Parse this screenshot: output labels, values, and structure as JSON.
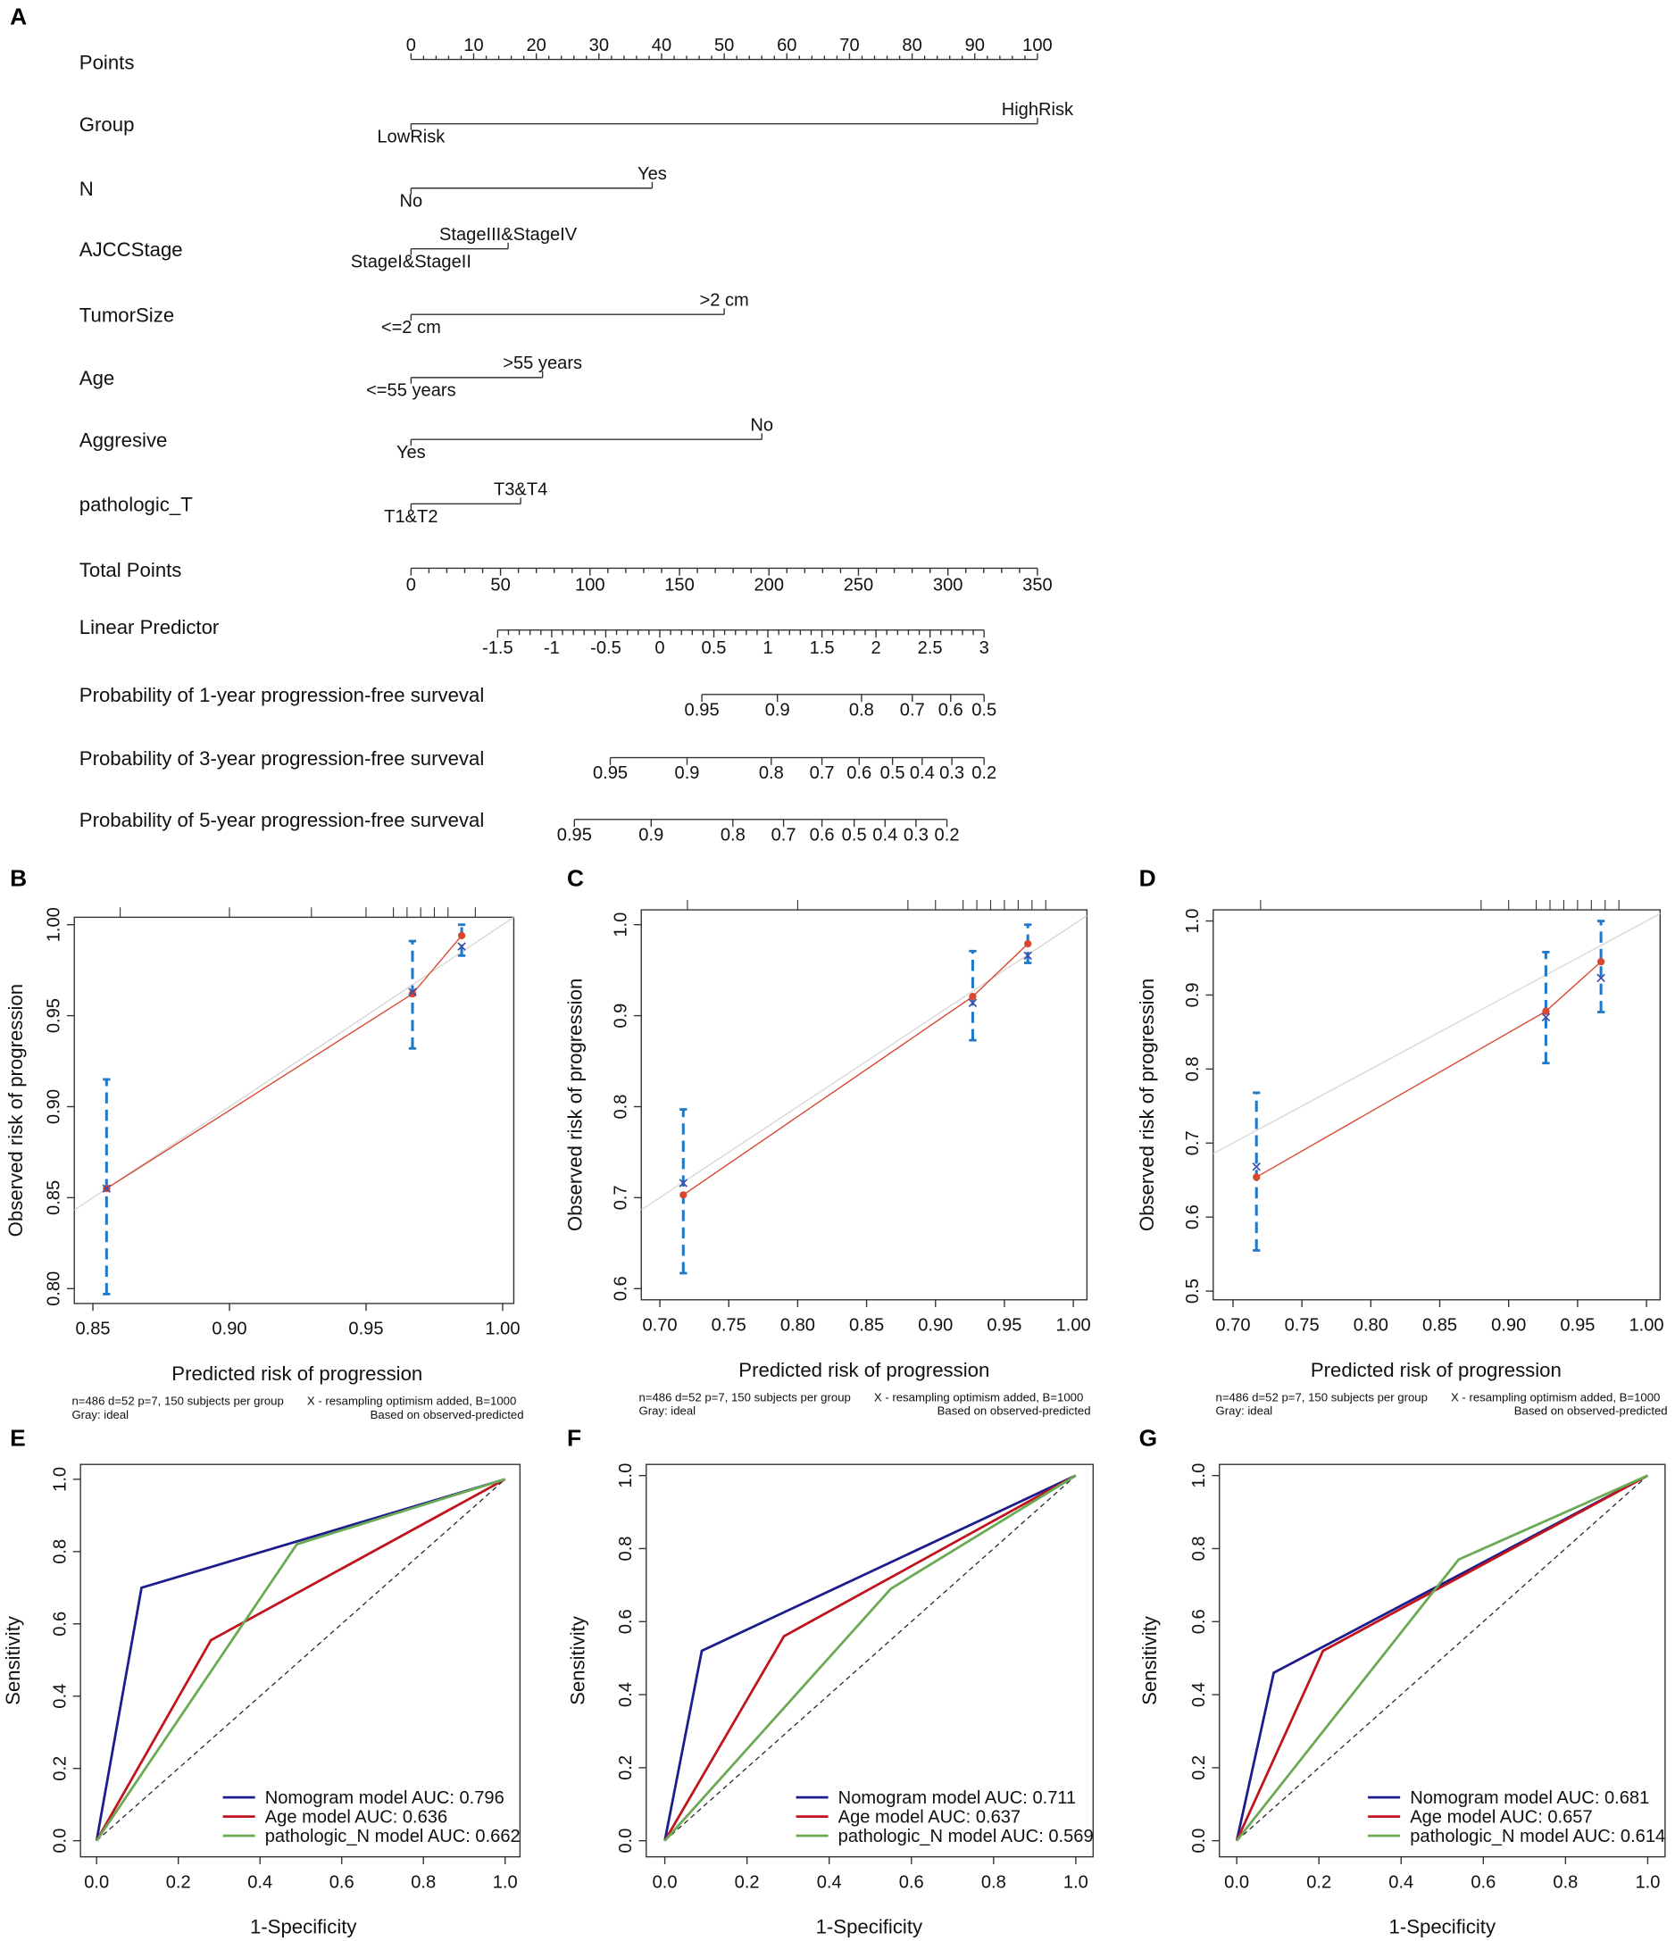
{
  "panel_labels": [
    "A",
    "B",
    "C",
    "D",
    "E",
    "F",
    "G"
  ],
  "chart_data": [
    {
      "type": "nomogram",
      "panel": "A",
      "points_axis": {
        "label": "Points",
        "min": 0,
        "max": 100,
        "ticks": [
          0,
          10,
          20,
          30,
          40,
          50,
          60,
          70,
          80,
          90,
          100
        ]
      },
      "variables": [
        {
          "label": "Group",
          "levels": [
            {
              "name": "LowRisk",
              "points": 0
            },
            {
              "name": "HighRisk",
              "points": 100
            }
          ]
        },
        {
          "label": "N",
          "levels": [
            {
              "name": "No",
              "points": 0
            },
            {
              "name": "Yes",
              "points": 38.5
            }
          ]
        },
        {
          "label": "AJCCStage",
          "levels": [
            {
              "name": "StageI&StageII",
              "points": 0
            },
            {
              "name": "StageIII&StageIV",
              "points": 15.5
            }
          ]
        },
        {
          "label": "TumorSize",
          "levels": [
            {
              "name": "<=2 cm",
              "points": 0
            },
            {
              "name": ">2 cm",
              "points": 50
            }
          ]
        },
        {
          "label": "Age",
          "levels": [
            {
              "name": "<=55 years",
              "points": 0
            },
            {
              "name": ">55 years",
              "points": 21
            }
          ]
        },
        {
          "label": "Aggresive",
          "levels": [
            {
              "name": "Yes",
              "points": 0
            },
            {
              "name": "No",
              "points": 56
            }
          ]
        },
        {
          "label": "pathologic_T",
          "levels": [
            {
              "name": "T1&T2",
              "points": 0
            },
            {
              "name": "T3&T4",
              "points": 17.5
            }
          ]
        }
      ],
      "total_points": {
        "label": "Total Points",
        "min": 0,
        "max": 350,
        "ticks": [
          "0",
          "50",
          "100",
          "150",
          "200",
          "250",
          "300",
          "350"
        ]
      },
      "linear_predictor": {
        "label": "Linear Predictor",
        "ticks": [
          "-1.5",
          "-1",
          "-0.5",
          "0",
          "0.5",
          "1",
          "1.5",
          "2",
          "2.5",
          "3"
        ],
        "lp_min": -1.5,
        "lp_max": 3,
        "tp_at_min": 48.4,
        "tp_per_unit": 60.4
      },
      "probability_scales": [
        {
          "label": "Probability of 1-year progression-free surveval",
          "ticks": [
            "0.95",
            "0.9",
            "0.8",
            "0.7",
            "0.6",
            "0.5"
          ],
          "lp": [
            0.389,
            1.088,
            1.866,
            2.336,
            2.691,
            3.0
          ]
        },
        {
          "label": "Probability of 3-year progression-free surveval",
          "ticks": [
            "0.95",
            "0.9",
            "0.8",
            "0.7",
            "0.6",
            "0.5",
            "0.4",
            "0.3",
            "0.2"
          ],
          "lp": [
            -0.458,
            0.252,
            1.031,
            1.5,
            1.844,
            2.153,
            2.427,
            2.702,
            3.0
          ]
        },
        {
          "label": "Probability of 5-year progression-free surveval",
          "ticks": [
            "0.95",
            "0.9",
            "0.8",
            "0.7",
            "0.6",
            "0.5",
            "0.4",
            "0.3",
            "0.2"
          ],
          "lp": [
            -0.79,
            -0.08,
            0.676,
            1.145,
            1.5,
            1.798,
            2.084,
            2.37,
            2.656
          ]
        }
      ]
    },
    {
      "type": "calibration",
      "panel": "B",
      "xlabel": "Predicted risk of progression",
      "ylabel": "Observed risk of progression",
      "xlim": [
        0.85,
        1.0
      ],
      "ylim": [
        0.8,
        1.0
      ],
      "xticks": [
        "0.85",
        "0.90",
        "0.95",
        "1.00"
      ],
      "yticks": [
        "0.80",
        "0.85",
        "0.90",
        "0.95",
        "1.00"
      ],
      "points": [
        {
          "x": 0.855,
          "y": 0.855,
          "lo": 0.797,
          "hi": 0.915,
          "corrected": 0.855
        },
        {
          "x": 0.967,
          "y": 0.962,
          "lo": 0.932,
          "hi": 0.991,
          "corrected": 0.963
        },
        {
          "x": 0.985,
          "y": 0.994,
          "lo": 0.983,
          "hi": 1.0,
          "corrected": 0.988
        }
      ],
      "rug": [
        0.86,
        0.9,
        0.93,
        0.95,
        0.96,
        0.965,
        0.97,
        0.975,
        0.98,
        0.99
      ],
      "footnote": [
        "n=486 d=52 p=7, 150 subjects per group",
        "X - resampling optimism added, B=1000",
        "Gray: ideal",
        "Based on observed-predicted"
      ]
    },
    {
      "type": "calibration",
      "panel": "C",
      "xlabel": "Predicted risk of progression",
      "ylabel": "Observed risk of progression",
      "xlim": [
        0.7,
        1.0
      ],
      "ylim": [
        0.6,
        1.0
      ],
      "xticks": [
        "0.70",
        "0.75",
        "0.80",
        "0.85",
        "0.90",
        "0.95",
        "1.00"
      ],
      "yticks": [
        "0.6",
        "0.7",
        "0.8",
        "0.9",
        "1.0"
      ],
      "points": [
        {
          "x": 0.717,
          "y": 0.703,
          "lo": 0.617,
          "hi": 0.797,
          "corrected": 0.716
        },
        {
          "x": 0.927,
          "y": 0.921,
          "lo": 0.873,
          "hi": 0.971,
          "corrected": 0.914
        },
        {
          "x": 0.967,
          "y": 0.979,
          "lo": 0.958,
          "hi": 1.0,
          "corrected": 0.966
        }
      ],
      "rug": [
        0.72,
        0.8,
        0.88,
        0.9,
        0.92,
        0.93,
        0.94,
        0.95,
        0.96,
        0.97,
        0.98
      ],
      "footnote": [
        "n=486 d=52 p=7, 150 subjects per group",
        "X - resampling optimism added, B=1000",
        "Gray: ideal",
        "Based on observed-predicted"
      ]
    },
    {
      "type": "calibration",
      "panel": "D",
      "xlabel": "Predicted risk of progression",
      "ylabel": "Observed risk of progression",
      "xlim": [
        0.7,
        1.0
      ],
      "ylim": [
        0.5,
        1.0
      ],
      "xticks": [
        "0.70",
        "0.75",
        "0.80",
        "0.85",
        "0.90",
        "0.95",
        "1.00"
      ],
      "yticks": [
        "0.5",
        "0.6",
        "0.7",
        "0.8",
        "0.9",
        "1.0"
      ],
      "points": [
        {
          "x": 0.717,
          "y": 0.654,
          "lo": 0.555,
          "hi": 0.768,
          "corrected": 0.668
        },
        {
          "x": 0.927,
          "y": 0.878,
          "lo": 0.808,
          "hi": 0.958,
          "corrected": 0.87
        },
        {
          "x": 0.967,
          "y": 0.945,
          "lo": 0.877,
          "hi": 1.0,
          "corrected": 0.923
        }
      ],
      "rug": [
        0.72,
        0.88,
        0.9,
        0.92,
        0.93,
        0.94,
        0.95,
        0.96,
        0.97,
        0.98
      ],
      "footnote": [
        "n=486 d=52 p=7, 150 subjects per group",
        "X - resampling optimism added, B=1000",
        "Gray: ideal",
        "Based on observed-predicted"
      ]
    },
    {
      "type": "line",
      "panel": "E",
      "xlabel": "1-Specificity",
      "ylabel": "Sensitivity",
      "xlim": [
        0,
        1
      ],
      "ylim": [
        0,
        1
      ],
      "xticks": [
        "0.0",
        "0.2",
        "0.4",
        "0.6",
        "0.8",
        "1.0"
      ],
      "yticks": [
        "0.0",
        "0.2",
        "0.4",
        "0.6",
        "0.8",
        "1.0"
      ],
      "series": [
        {
          "name": "Nomogram model AUC: 0.796",
          "color": "#1c1c8c",
          "x": [
            0,
            0.11,
            1
          ],
          "y": [
            0,
            0.7,
            1
          ]
        },
        {
          "name": "Age model AUC: 0.636",
          "color": "#c0151c",
          "x": [
            0,
            0.28,
            1
          ],
          "y": [
            0,
            0.555,
            1
          ]
        },
        {
          "name": "pathologic_N model AUC: 0.662",
          "color": "#6aaa55",
          "x": [
            0,
            0.49,
            1
          ],
          "y": [
            0,
            0.82,
            1
          ]
        }
      ]
    },
    {
      "type": "line",
      "panel": "F",
      "xlabel": "1-Specificity",
      "ylabel": "Sensitivity",
      "xlim": [
        0,
        1
      ],
      "ylim": [
        0,
        1
      ],
      "xticks": [
        "0.0",
        "0.2",
        "0.4",
        "0.6",
        "0.8",
        "1.0"
      ],
      "yticks": [
        "0.0",
        "0.2",
        "0.4",
        "0.6",
        "0.8",
        "1.0"
      ],
      "series": [
        {
          "name": "Nomogram model AUC: 0.711",
          "color": "#1c1c8c",
          "x": [
            0,
            0.09,
            1
          ],
          "y": [
            0,
            0.52,
            1
          ]
        },
        {
          "name": "Age model AUC: 0.637",
          "color": "#c0151c",
          "x": [
            0,
            0.29,
            1
          ],
          "y": [
            0,
            0.56,
            1
          ]
        },
        {
          "name": "pathologic_N model AUC: 0.569",
          "color": "#6aaa55",
          "x": [
            0,
            0.55,
            1
          ],
          "y": [
            0,
            0.69,
            1
          ]
        }
      ]
    },
    {
      "type": "line",
      "panel": "G",
      "xlabel": "1-Specificity",
      "ylabel": "Sensitivity",
      "xlim": [
        0,
        1
      ],
      "ylim": [
        0,
        1
      ],
      "xticks": [
        "0.0",
        "0.2",
        "0.4",
        "0.6",
        "0.8",
        "1.0"
      ],
      "yticks": [
        "0.0",
        "0.2",
        "0.4",
        "0.6",
        "0.8",
        "1.0"
      ],
      "series": [
        {
          "name": "Nomogram model AUC: 0.681",
          "color": "#1c1c8c",
          "x": [
            0,
            0.09,
            1
          ],
          "y": [
            0,
            0.46,
            1
          ]
        },
        {
          "name": "Age model AUC: 0.657",
          "color": "#c0151c",
          "x": [
            0,
            0.21,
            1
          ],
          "y": [
            0,
            0.52,
            1
          ]
        },
        {
          "name": "pathologic_N model AUC: 0.614",
          "color": "#6aaa55",
          "x": [
            0,
            0.54,
            1
          ],
          "y": [
            0,
            0.77,
            1
          ]
        }
      ]
    }
  ],
  "colors": {
    "calib_line": "#d9472f",
    "error_bar": "#1f78c8",
    "ideal": "#d8d8d8",
    "corrected": "#3a4fa8"
  }
}
